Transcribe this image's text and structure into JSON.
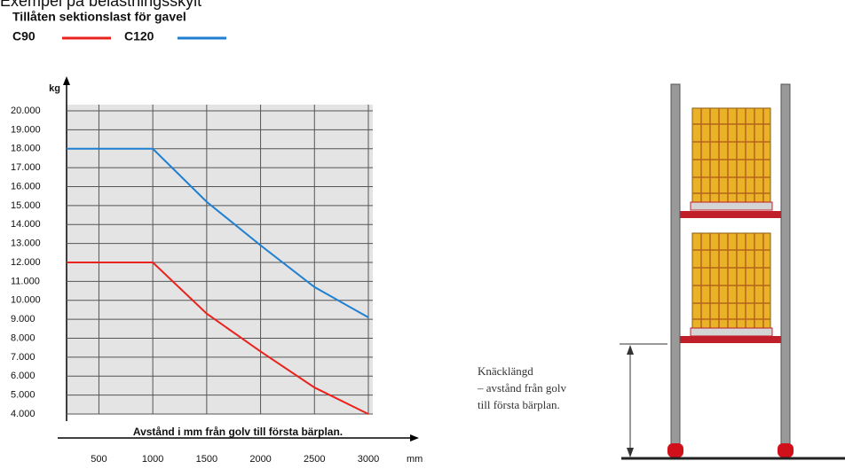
{
  "header": "Exempel på belastningsskylt",
  "chart_data": {
    "type": "line",
    "title": "Tillåten sektionslast för gavel",
    "y_label": "kg",
    "x_label": "Avstånd i mm från golv till första bärplan.",
    "x_unit": "mm",
    "x": [
      200,
      1000,
      1500,
      2000,
      2500,
      3000
    ],
    "series": [
      {
        "name": "C90",
        "color": "#e8231e",
        "values": [
          12000,
          12000,
          9300,
          7300,
          5400,
          4000
        ]
      },
      {
        "name": "C120",
        "color": "#1f7fd0",
        "values": [
          18000,
          18000,
          15200,
          12900,
          10700,
          9100
        ]
      }
    ],
    "xlim": [
      200,
      3000
    ],
    "xticks": [
      500,
      1000,
      1500,
      2000,
      2500,
      3000
    ],
    "ylim": [
      4000,
      20000
    ],
    "yticks": [
      {
        "value": 4000,
        "label": "4.000"
      },
      {
        "value": 5000,
        "label": "5.000"
      },
      {
        "value": 6000,
        "label": "6.000"
      },
      {
        "value": 7000,
        "label": "7.000"
      },
      {
        "value": 8000,
        "label": "8.000"
      },
      {
        "value": 9000,
        "label": "9.000"
      },
      {
        "value": 10000,
        "label": "10.000"
      },
      {
        "value": 11000,
        "label": "11.000"
      },
      {
        "value": 12000,
        "label": "12.000"
      },
      {
        "value": 13000,
        "label": "13.000"
      },
      {
        "value": 14000,
        "label": "14.000"
      },
      {
        "value": 15000,
        "label": "15.000"
      },
      {
        "value": 16000,
        "label": "16.000"
      },
      {
        "value": 17000,
        "label": "17.000"
      },
      {
        "value": 18000,
        "label": "18.000"
      },
      {
        "value": 19000,
        "label": "19.000"
      },
      {
        "value": 20000,
        "label": "20.000"
      }
    ],
    "grid": true
  },
  "diagram": {
    "label_lines": [
      "Knäcklängd",
      "– avstånd från golv",
      "till första bärplan."
    ]
  }
}
